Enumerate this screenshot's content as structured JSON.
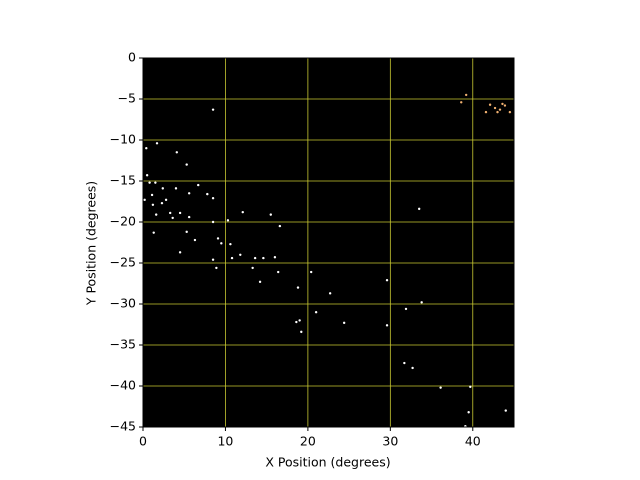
{
  "chart_data": {
    "type": "scatter",
    "xlabel": "X Position (degrees)",
    "ylabel": "Y Position (degrees)",
    "xlim": [
      0,
      45
    ],
    "ylim": [
      -45,
      0
    ],
    "xticks": [
      0,
      10,
      20,
      30,
      40
    ],
    "yticks": [
      0,
      {
        "value": -5,
        "label": "−5"
      },
      {
        "value": -10,
        "label": "−10"
      },
      {
        "value": -15,
        "label": "−15"
      },
      {
        "value": -20,
        "label": "−20"
      },
      {
        "value": -25,
        "label": "−25"
      },
      {
        "value": -30,
        "label": "−30"
      },
      {
        "value": -35,
        "label": "−35"
      },
      {
        "value": -40,
        "label": "−40"
      },
      {
        "value": -45,
        "label": "−45"
      }
    ],
    "grid": true,
    "grid_color": "#c8c832",
    "background": "#000000",
    "series": [
      {
        "color": "#ffffff",
        "x": [
          8.5,
          0.4,
          1.7,
          4.1,
          0.5,
          0.8,
          1.5,
          2.4,
          5.3,
          6.7,
          7.8,
          8.5,
          5.6,
          4.0,
          1.1,
          0.2,
          1.2,
          2.3,
          2.8,
          3.3,
          4.5,
          1.6,
          3.6,
          5.6,
          12.1,
          15.5,
          10.3,
          1.3,
          5.3,
          8.5,
          16.6,
          9.1,
          10.6,
          9.5,
          6.3,
          4.5,
          11.8,
          13.6,
          10.8,
          8.5,
          8.9,
          14.6,
          13.3,
          16.0,
          14.2,
          16.4,
          20.4,
          18.8,
          22.7,
          19.0,
          18.6,
          19.2,
          21.0,
          24.4,
          29.6,
          29.6,
          33.5,
          33.8,
          31.9,
          31.7,
          32.7,
          36.1,
          39.7,
          39.5,
          39.1,
          44.0
        ],
        "values": [
          -6.3,
          -11.0,
          -10.4,
          -11.5,
          -14.3,
          -15.2,
          -15.2,
          -15.9,
          -13.0,
          -15.5,
          -16.6,
          -17.1,
          -16.5,
          -15.9,
          -16.7,
          -17.3,
          -17.9,
          -17.7,
          -17.3,
          -18.9,
          -18.9,
          -19.1,
          -19.5,
          -19.4,
          -18.8,
          -19.1,
          -19.8,
          -21.3,
          -21.2,
          -20.0,
          -20.5,
          -22.0,
          -22.7,
          -22.6,
          -22.2,
          -23.7,
          -24.0,
          -24.4,
          -24.4,
          -24.6,
          -25.6,
          -24.4,
          -25.6,
          -24.3,
          -27.3,
          -26.1,
          -26.1,
          -28.0,
          -28.7,
          -32.0,
          -32.2,
          -33.4,
          -31.0,
          -32.3,
          -27.1,
          -32.6,
          -18.4,
          -29.8,
          -30.6,
          -37.2,
          -37.8,
          -40.2,
          -40.1,
          -43.2,
          -44.9,
          -43.0
        ]
      },
      {
        "color": "#f0b070",
        "x": [
          42.1,
          42.7,
          43.3,
          43.9,
          43.0,
          43.6,
          44.5,
          41.6,
          39.2,
          38.6
        ],
        "values": [
          -5.7,
          -6.1,
          -6.3,
          -5.8,
          -6.6,
          -5.6,
          -6.6,
          -6.6,
          -4.5,
          -5.4
        ]
      }
    ]
  }
}
